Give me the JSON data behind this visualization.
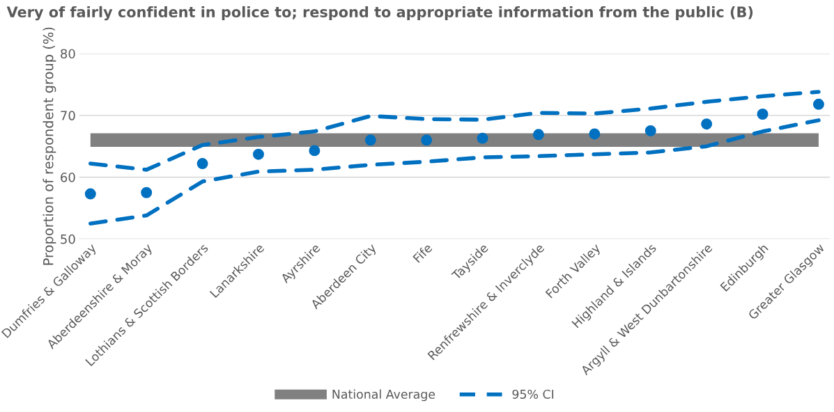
{
  "chart_data": {
    "type": "line",
    "title": "Very of fairly confident in police to; respond to appropriate information from the public (B)",
    "ylabel": "Proportion of respondent group (%)",
    "categories": [
      "Dumfries & Galloway",
      "Aberdeenshire & Moray",
      "Lothians & Scottish Borders",
      "Lanarkshire",
      "Ayrshire",
      "Aberdeen City",
      "Fife",
      "Tayside",
      "Renfrewshire & Inverclyde",
      "Forth Valley",
      "Highland & Islands",
      "Argyll & West Dunbartonshire",
      "Edinburgh",
      "Greater Glasgow"
    ],
    "series": [
      {
        "name": "National Average",
        "color": "#808080",
        "line_style": "solid",
        "values": [
          66,
          66,
          66,
          66,
          66,
          66,
          66,
          66,
          66,
          66,
          66,
          66,
          66,
          66
        ]
      },
      {
        "name": "95% CI",
        "type": "line",
        "color": "#0070c0",
        "line_style": "dashed",
        "values": [
          62.2,
          61.2,
          65.2,
          66.5,
          67.4,
          69.9,
          69.4,
          69.3,
          70.4,
          70.3,
          71.1,
          72.2,
          73.1,
          73.8
        ]
      },
      {
        "type": "line",
        "color": "#0070c0",
        "line_style": "dashed",
        "values": [
          52.5,
          53.8,
          59.3,
          60.9,
          61.2,
          62.0,
          62.5,
          63.2,
          63.4,
          63.7,
          64.0,
          65.0,
          67.4,
          69.2
        ]
      },
      {
        "type": "scatter",
        "color": "#0070c0",
        "marker": "circle",
        "values": [
          57.3,
          57.5,
          62.2,
          63.7,
          64.3,
          66.0,
          66.0,
          66.3,
          66.9,
          67.0,
          67.5,
          68.6,
          70.2,
          71.8
        ]
      }
    ],
    "ylim": [
      50,
      80
    ],
    "yticks": [
      50,
      60,
      70,
      80
    ],
    "grid": "y",
    "legend": "bottom"
  }
}
